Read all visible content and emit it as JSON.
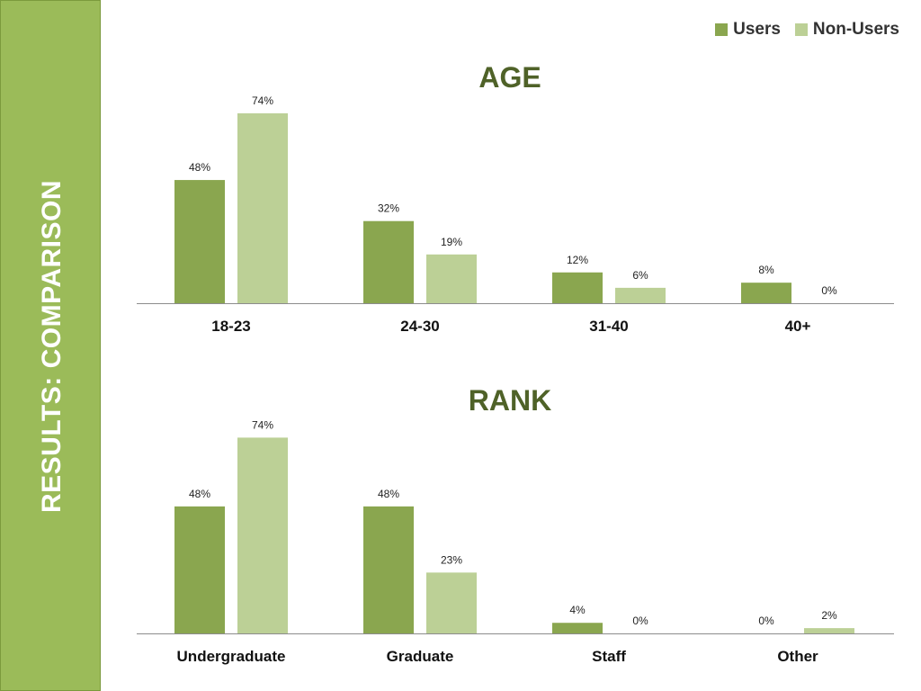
{
  "sidebar": {
    "title": "RESULTS: COMPARISON"
  },
  "legend": {
    "items": [
      {
        "label": "Users",
        "color": "#8aa64f"
      },
      {
        "label": "Non-Users",
        "color": "#bcd096"
      }
    ]
  },
  "chart_data": [
    {
      "type": "bar",
      "title": "AGE",
      "categories": [
        "18-23",
        "24-30",
        "31-40",
        "40+"
      ],
      "series": [
        {
          "name": "Users",
          "values": [
            48,
            32,
            12,
            8
          ],
          "labels": [
            "48%",
            "32%",
            "12%",
            "8%"
          ],
          "color": "#8aa64f"
        },
        {
          "name": "Non-Users",
          "values": [
            74,
            19,
            6,
            0
          ],
          "labels": [
            "74%",
            "19%",
            "6%",
            "0%"
          ],
          "color": "#bcd096"
        }
      ],
      "ylim": [
        0,
        100
      ],
      "grid": false,
      "legend": "top-right"
    },
    {
      "type": "bar",
      "title": "RANK",
      "categories": [
        "Undergraduate",
        "Graduate",
        "Staff",
        "Other"
      ],
      "series": [
        {
          "name": "Users",
          "values": [
            48,
            48,
            4,
            0
          ],
          "labels": [
            "48%",
            "48%",
            "4%",
            "0%"
          ],
          "color": "#8aa64f"
        },
        {
          "name": "Non-Users",
          "values": [
            74,
            23,
            0,
            2
          ],
          "labels": [
            "74%",
            "23%",
            "0%",
            "2%"
          ],
          "color": "#bcd096"
        }
      ],
      "ylim": [
        0,
        100
      ],
      "grid": false,
      "legend": "top-right"
    }
  ]
}
